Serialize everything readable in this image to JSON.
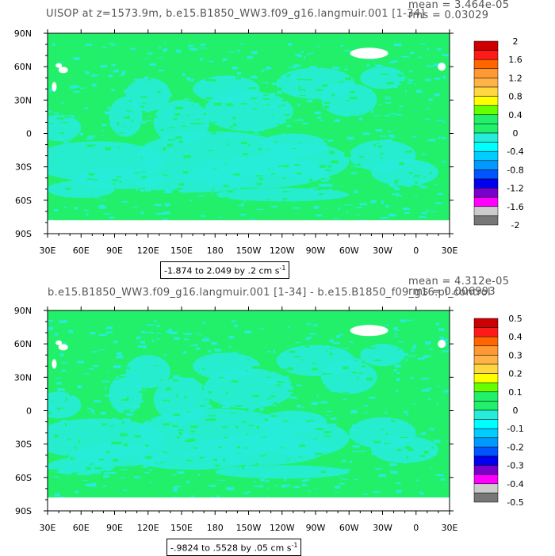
{
  "colors": {
    "ocean_green": "#22f06a",
    "ocean_cyan": "#27ecd9",
    "land": "#ffffff",
    "stat_text": "#555555"
  },
  "panel1": {
    "title": "UISOP at z=1573.9m, b.e15.B1850_WW3.f09_g16.langmuir.001 [1-34]",
    "mean": "mean = 3.464e-05",
    "rms": "rms = 0.03029",
    "range_text": "-1.874 to 2.049 by .2",
    "units": "cm s",
    "units_exp": "-1"
  },
  "panel2": {
    "title": "b.e15.B1850_WW3.f09_g16.langmuir.001 [1-34] - b.e15.B1850_f09_g16.pi_control",
    "mean": "mean = 4.312e-05",
    "rms": "rms = 0.006993",
    "range_text": "-.9824 to .5528 by .05",
    "units": "cm s",
    "units_exp": "-1"
  },
  "chart_data": [
    {
      "type": "heatmap",
      "title": "UISOP at z=1573.9m, b.e15.B1850_WW3.f09_g16.langmuir.001 [1-34]",
      "xlabel": "",
      "ylabel": "",
      "x_ticks": [
        "30E",
        "60E",
        "90E",
        "120E",
        "150E",
        "180",
        "150W",
        "120W",
        "90W",
        "60W",
        "30W",
        "0",
        "30E"
      ],
      "y_ticks": [
        "90N",
        "60N",
        "30N",
        "0",
        "30S",
        "60S",
        "90S"
      ],
      "xlim": [
        30,
        390
      ],
      "ylim": [
        -90,
        90
      ],
      "colorbar": {
        "labels": [
          "2",
          "1.6",
          "1.2",
          "0.8",
          "0.4",
          "0",
          "-0.4",
          "-0.8",
          "-1.2",
          "-1.6",
          "-2"
        ],
        "colors": [
          "#cc0000",
          "#ff1a1a",
          "#ff6600",
          "#ff9933",
          "#ffb347",
          "#ffd740",
          "#ffff00",
          "#66ff00",
          "#22f06a",
          "#22f06a",
          "#27ecd9",
          "#00ffff",
          "#00ccff",
          "#0099ff",
          "#0055ff",
          "#0000ee",
          "#7a00cc",
          "#ff00ff",
          "#cccccc",
          "#777777"
        ]
      },
      "range": {
        "min": -1.874,
        "max": 2.049,
        "step": 0.2
      },
      "stats": {
        "mean": 3.464e-05,
        "rms": 0.03029
      }
    },
    {
      "type": "heatmap",
      "title": "b.e15.B1850_WW3.f09_g16.langmuir.001 [1-34] - b.e15.B1850_f09_g16.pi_control",
      "xlabel": "",
      "ylabel": "",
      "x_ticks": [
        "30E",
        "60E",
        "90E",
        "120E",
        "150E",
        "180",
        "150W",
        "120W",
        "90W",
        "60W",
        "30W",
        "0",
        "30E"
      ],
      "y_ticks": [
        "90N",
        "60N",
        "30N",
        "0",
        "30S",
        "60S",
        "90S"
      ],
      "xlim": [
        30,
        390
      ],
      "ylim": [
        -90,
        90
      ],
      "colorbar": {
        "labels": [
          "0.5",
          "0.4",
          "0.3",
          "0.2",
          "0.1",
          "0",
          "-0.1",
          "-0.2",
          "-0.3",
          "-0.4",
          "-0.5"
        ],
        "colors": [
          "#cc0000",
          "#ff1a1a",
          "#ff6600",
          "#ff9933",
          "#ffb347",
          "#ffd740",
          "#ffff00",
          "#66ff00",
          "#22f06a",
          "#22f06a",
          "#27ecd9",
          "#00ffff",
          "#00ccff",
          "#0099ff",
          "#0055ff",
          "#0000ee",
          "#7a00cc",
          "#ff00ff",
          "#cccccc",
          "#777777"
        ]
      },
      "range": {
        "min": -0.9824,
        "max": 0.5528,
        "step": 0.05
      },
      "stats": {
        "mean": 4.312e-05,
        "rms": 0.006993
      }
    }
  ]
}
